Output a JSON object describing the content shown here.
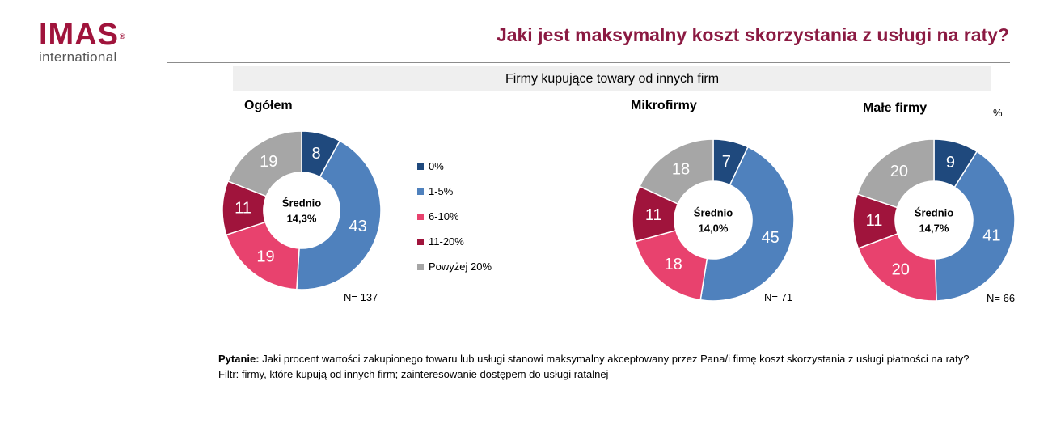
{
  "logo": {
    "main": "IMAS",
    "reg": "®",
    "sub": "international"
  },
  "title": "Jaki jest maksymalny koszt skorzystania z usługi na raty?",
  "subheader": "Firmy kupujące towary od innych firm",
  "unit": "%",
  "colors": {
    "0%": "#1f497d",
    "1-5%": "#4f81bd",
    "6-10%": "#e8426e",
    "11-20%": "#a0143c",
    "Powyżej 20%": "#a6a6a6"
  },
  "legend": [
    "0%",
    "1-5%",
    "6-10%",
    "11-20%",
    "Powyżej 20%"
  ],
  "chart_data": [
    {
      "type": "pie",
      "title": "Ogółem",
      "categories": [
        "0%",
        "1-5%",
        "6-10%",
        "11-20%",
        "Powyżej 20%"
      ],
      "values": [
        8,
        43,
        19,
        11,
        19
      ],
      "center_label": "Średnio",
      "center_value": "14,3%",
      "n": "N= 137"
    },
    {
      "type": "pie",
      "title": "Mikrofirmy",
      "categories": [
        "0%",
        "1-5%",
        "6-10%",
        "11-20%",
        "Powyżej 20%"
      ],
      "values": [
        7,
        45,
        18,
        11,
        18
      ],
      "center_label": "Średnio",
      "center_value": "14,0%",
      "n": "N= 71"
    },
    {
      "type": "pie",
      "title": "Małe firmy",
      "categories": [
        "0%",
        "1-5%",
        "6-10%",
        "11-20%",
        "Powyżej 20%"
      ],
      "values": [
        9,
        41,
        20,
        11,
        20
      ],
      "center_label": "Średnio",
      "center_value": "14,7%",
      "n": "N= 66"
    }
  ],
  "footnote": {
    "question_label": "Pytanie:",
    "question_text": " Jaki procent wartości zakupionego towaru lub usługi stanowi maksymalny akceptowany przez Pana/i firmę koszt skorzystania z usługi płatności na raty?",
    "filter_label": "Filtr",
    "filter_text": ": firmy, które kupują od innych firm; zainteresowanie dostępem do usługi ratalnej"
  }
}
